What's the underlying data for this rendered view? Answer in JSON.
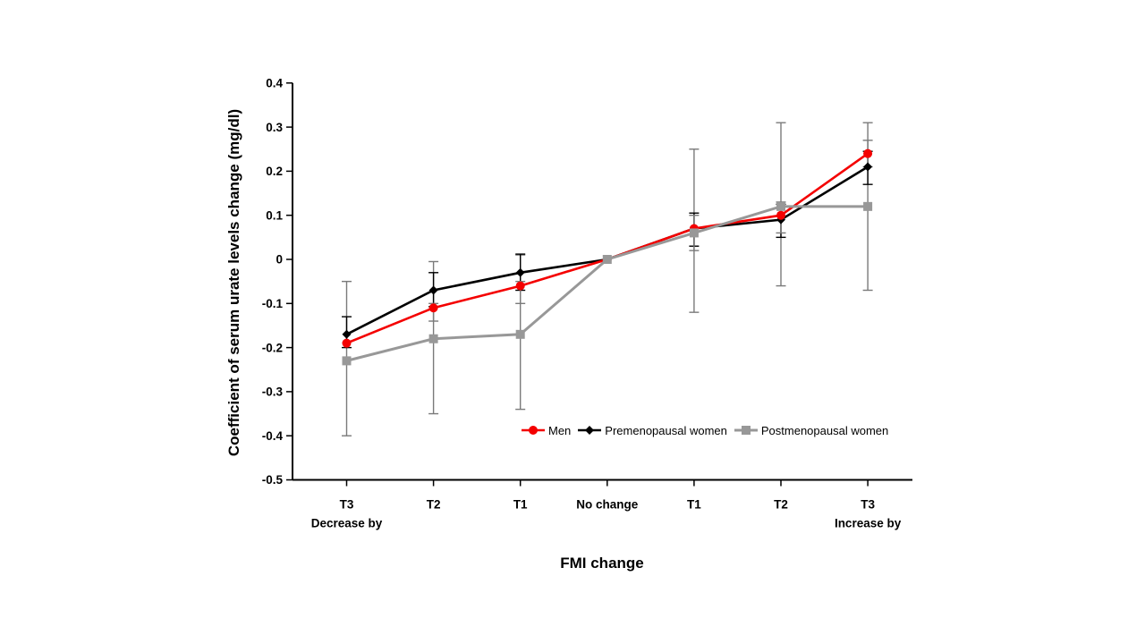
{
  "page": {
    "background": "#ffffff"
  },
  "chart_data": {
    "type": "line",
    "title": "",
    "xlabel": "FMI change",
    "ylabel": "Coefficient of serum urate levels change (mg/dl)",
    "categories": [
      "T3",
      "T2",
      "T1",
      "No change",
      "T1",
      "T2",
      "T3"
    ],
    "category_sublabels": [
      "Decrease by",
      "",
      "",
      "",
      "",
      "",
      "Increase by"
    ],
    "ylim": [
      -0.5,
      0.4
    ],
    "yticks": [
      0.4,
      0.3,
      0.2,
      0.1,
      0,
      -0.1,
      -0.2,
      -0.3,
      -0.4,
      -0.5
    ],
    "ytick_labels": [
      "0.4",
      "0.3",
      "0.2",
      "0.1",
      "0",
      "-0.1",
      "-0.2",
      "-0.3",
      "-0.4",
      "-0.5"
    ],
    "grid": false,
    "legend": {
      "position": "inside-bottom",
      "entries": [
        "Men",
        "Premenopausal women",
        "Postmenopausal women"
      ]
    },
    "series": [
      {
        "name": "Men",
        "color": "#F40000",
        "marker": "circle",
        "values": [
          -0.19,
          -0.11,
          -0.06,
          0,
          0.07,
          0.1,
          0.24
        ]
      },
      {
        "name": "Premenopausal women",
        "color": "#000000",
        "marker": "diamond",
        "values": [
          -0.17,
          -0.07,
          -0.03,
          0,
          0.07,
          0.09,
          0.21
        ]
      },
      {
        "name": "Postmenopausal women",
        "color": "#989898",
        "marker": "square",
        "values": [
          -0.23,
          -0.18,
          -0.17,
          0,
          0.06,
          0.12,
          0.12
        ]
      }
    ],
    "error_bars": [
      {
        "category_index": 0,
        "bars": [
          {
            "color": "#7A7A7A",
            "lo": -0.4,
            "hi": -0.05
          },
          {
            "color": "#000000",
            "lo": -0.2,
            "hi": -0.13
          }
        ]
      },
      {
        "category_index": 1,
        "bars": [
          {
            "color": "#7A7A7A",
            "lo": -0.35,
            "hi": -0.005
          },
          {
            "color": "#000000",
            "lo": -0.107,
            "hi": -0.03
          },
          {
            "color": "#7A7A7A",
            "lo": -0.14,
            "hi": -0.1
          }
        ]
      },
      {
        "category_index": 2,
        "bars": [
          {
            "color": "#7A7A7A",
            "lo": -0.34,
            "hi": 0.01
          },
          {
            "color": "#000000",
            "lo": -0.07,
            "hi": 0.012
          },
          {
            "color": "#7A7A7A",
            "lo": -0.1,
            "hi": -0.05
          }
        ]
      },
      {
        "category_index": 4,
        "bars": [
          {
            "color": "#7A7A7A",
            "lo": -0.12,
            "hi": 0.25
          },
          {
            "color": "#000000",
            "lo": 0.03,
            "hi": 0.105
          },
          {
            "color": "#7A7A7A",
            "lo": 0.02,
            "hi": 0.1
          }
        ]
      },
      {
        "category_index": 5,
        "bars": [
          {
            "color": "#7A7A7A",
            "lo": -0.06,
            "hi": 0.31
          },
          {
            "color": "#000000",
            "lo": 0.05,
            "hi": 0.125
          },
          {
            "color": "#7A7A7A",
            "lo": 0.06,
            "hi": 0.13
          }
        ]
      },
      {
        "category_index": 6,
        "bars": [
          {
            "color": "#7A7A7A",
            "lo": -0.07,
            "hi": 0.31
          },
          {
            "color": "#000000",
            "lo": 0.17,
            "hi": 0.245
          },
          {
            "color": "#7A7A7A",
            "lo": 0.21,
            "hi": 0.27
          }
        ]
      }
    ]
  }
}
